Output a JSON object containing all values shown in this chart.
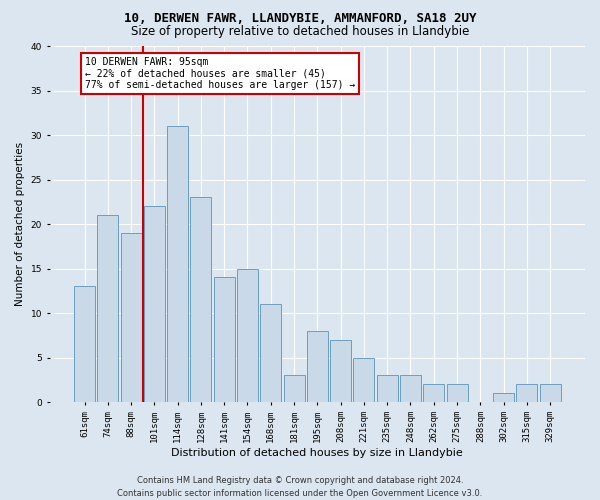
{
  "title1": "10, DERWEN FAWR, LLANDYBIE, AMMANFORD, SA18 2UY",
  "title2": "Size of property relative to detached houses in Llandybie",
  "xlabel": "Distribution of detached houses by size in Llandybie",
  "ylabel": "Number of detached properties",
  "categories": [
    "61sqm",
    "74sqm",
    "88sqm",
    "101sqm",
    "114sqm",
    "128sqm",
    "141sqm",
    "154sqm",
    "168sqm",
    "181sqm",
    "195sqm",
    "208sqm",
    "221sqm",
    "235sqm",
    "248sqm",
    "262sqm",
    "275sqm",
    "288sqm",
    "302sqm",
    "315sqm",
    "329sqm"
  ],
  "values": [
    13,
    21,
    19,
    22,
    31,
    23,
    14,
    15,
    11,
    3,
    8,
    7,
    5,
    3,
    3,
    2,
    2,
    0,
    1,
    2,
    2
  ],
  "bar_color": "#c9d9e8",
  "bar_edge_color": "#6a9fc0",
  "vline_x": 2.5,
  "vline_color": "#cc0000",
  "annotation_text": "10 DERWEN FAWR: 95sqm\n← 22% of detached houses are smaller (45)\n77% of semi-detached houses are larger (157) →",
  "annotation_box_facecolor": "#ffffff",
  "annotation_box_edgecolor": "#cc0000",
  "ylim": [
    0,
    40
  ],
  "yticks": [
    0,
    5,
    10,
    15,
    20,
    25,
    30,
    35,
    40
  ],
  "footer_line1": "Contains HM Land Registry data © Crown copyright and database right 2024.",
  "footer_line2": "Contains public sector information licensed under the Open Government Licence v3.0.",
  "bg_color": "#dce6f0",
  "plot_bg_color": "#dce6f0",
  "grid_color": "#ffffff",
  "title1_fontsize": 9,
  "title2_fontsize": 8.5,
  "xlabel_fontsize": 8,
  "ylabel_fontsize": 7.5,
  "tick_fontsize": 6.5,
  "annot_fontsize": 7,
  "footer_fontsize": 6
}
